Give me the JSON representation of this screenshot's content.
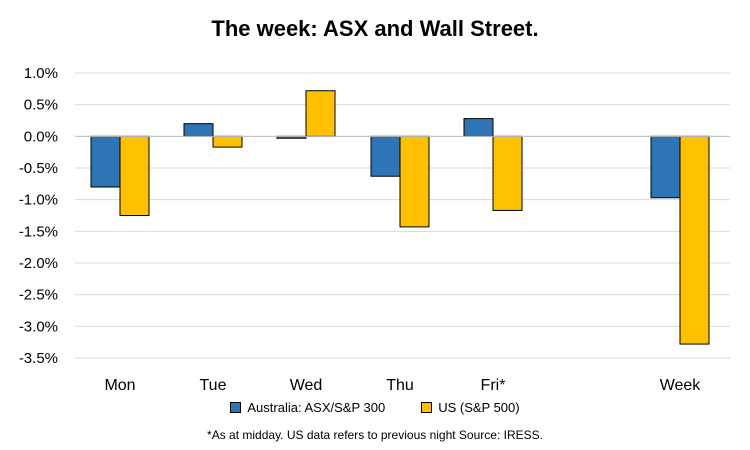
{
  "chart_data": {
    "type": "bar",
    "title": "The week:  ASX and Wall Street.",
    "categories": [
      "Mon",
      "Tue",
      "Wed",
      "Thu",
      "Fri*",
      "Week"
    ],
    "series": [
      {
        "name": "Australia: ASX/S&P 300",
        "color": "#2E75B6",
        "values": [
          -0.8,
          0.2,
          -0.03,
          -0.63,
          0.28,
          -0.97
        ]
      },
      {
        "name": "US (S&P 500)",
        "color": "#FFC000",
        "values": [
          -1.25,
          -0.17,
          0.72,
          -1.43,
          -1.17,
          -3.28
        ]
      }
    ],
    "ylim": [
      -3.5,
      1.0
    ],
    "yticks": [
      "1.0%",
      "0.5%",
      "0.0%",
      "-0.5%",
      "-1.0%",
      "-1.5%",
      "-2.0%",
      "-2.5%",
      "-3.0%",
      "-3.5%"
    ],
    "ytick_values": [
      1.0,
      0.5,
      0.0,
      -0.5,
      -1.0,
      -1.5,
      -2.0,
      -2.5,
      -3.0,
      -3.5
    ],
    "grid": true,
    "legend_position": "bottom",
    "note": "*As at midday. US data refers to previous night  Source:  IRESS."
  }
}
